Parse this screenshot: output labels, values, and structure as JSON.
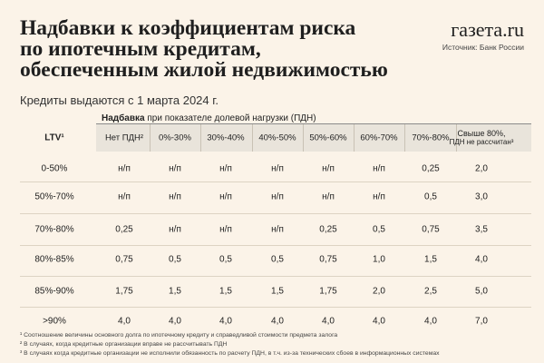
{
  "title_lines": [
    "Надбавки к коэффициентам риска",
    "по ипотечным кредитам,",
    "обеспеченным жилой недвижимостью"
  ],
  "subtitle": "Кредиты выдаются с 1 марта 2024 г.",
  "brand": {
    "logo": "газета.ru",
    "source": "Источник: Банк России"
  },
  "table": {
    "band_bold": "Надбавка",
    "band_rest": " при показателе долевой нагрузки (ПДН)",
    "ltv_label": "LTV¹",
    "columns": [
      {
        "label": "Нет ПДН²"
      },
      {
        "label": "0%-30%"
      },
      {
        "label": "30%-40%"
      },
      {
        "label": "40%-50%"
      },
      {
        "label": "50%-60%"
      },
      {
        "label": "60%-70%"
      },
      {
        "label": "70%-80%"
      },
      {
        "label": "Свыше 80%,",
        "label2": "ПДН не рассчитан³"
      }
    ],
    "rows": [
      {
        "ltv": "0-50%",
        "values": [
          "н/п",
          "н/п",
          "н/п",
          "н/п",
          "н/п",
          "н/п",
          "0,25",
          "2,0"
        ]
      },
      {
        "ltv": "50%-70%",
        "values": [
          "н/п",
          "н/п",
          "н/п",
          "н/п",
          "н/п",
          "н/п",
          "0,5",
          "3,0"
        ]
      },
      {
        "ltv": "70%-80%",
        "values": [
          "0,25",
          "н/п",
          "н/п",
          "н/п",
          "0,25",
          "0,5",
          "0,75",
          "3,5"
        ]
      },
      {
        "ltv": "80%-85%",
        "values": [
          "0,75",
          "0,5",
          "0,5",
          "0,5",
          "0,75",
          "1,0",
          "1,5",
          "4,0"
        ]
      },
      {
        "ltv": "85%-90%",
        "values": [
          "1,75",
          "1,5",
          "1,5",
          "1,5",
          "1,75",
          "2,0",
          "2,5",
          "5,0"
        ]
      },
      {
        "ltv": ">90%",
        "values": [
          "4,0",
          "4,0",
          "4,0",
          "4,0",
          "4,0",
          "4,0",
          "4,0",
          "7,0"
        ]
      }
    ]
  },
  "notes": [
    "¹ Соотношение величины основного долга по ипотечному кредиту и справедливой стоимости предмета залога",
    "² В случаях, когда кредитные организации вправе не рассчитывать ПДН",
    "³ В случаях когда кредитные организации не исполнили обязанность по расчету ПДН, в т.ч. из-за технических сбоев в информационных системах"
  ]
}
